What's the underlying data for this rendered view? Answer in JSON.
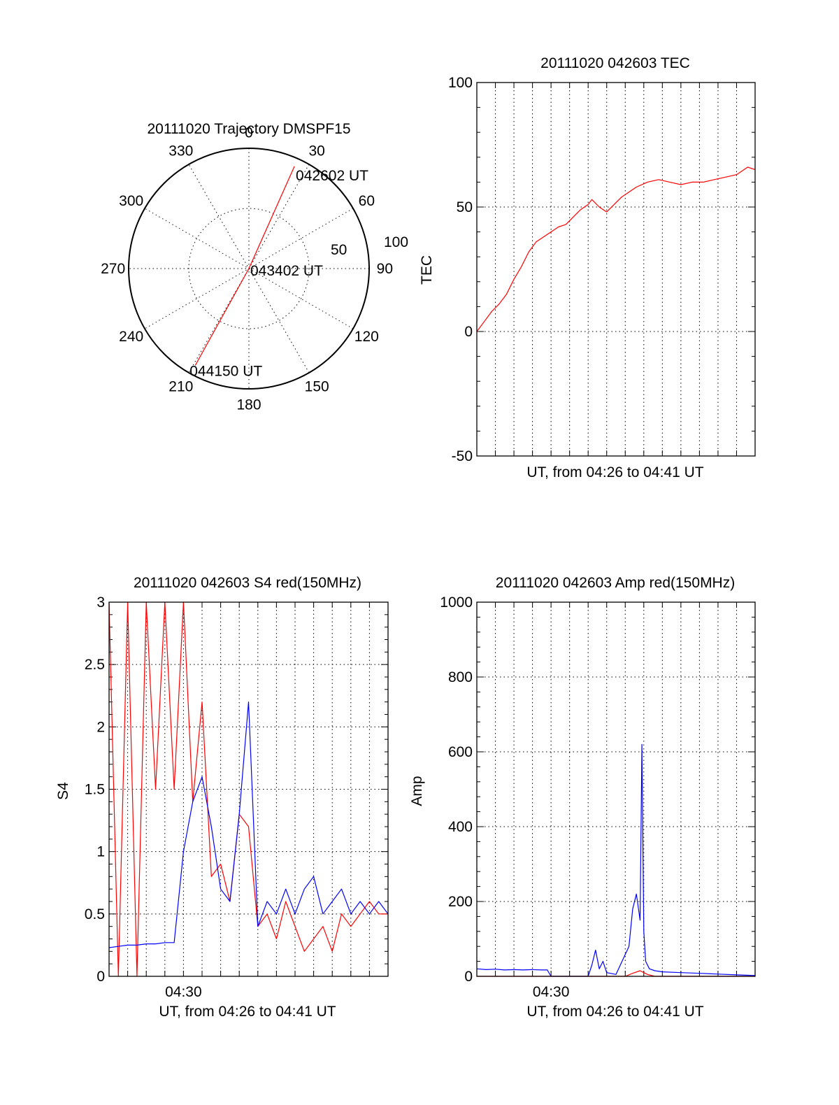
{
  "colors": {
    "red": "#ff0000",
    "blue": "#0000ff",
    "axis": "#000000"
  },
  "chart_data": [
    {
      "id": "trajectory",
      "type": "polar",
      "title": "20111020 Trajectory DMSPF15",
      "azimuth_labels": [
        "0",
        "30",
        "60",
        "90",
        "120",
        "150",
        "180",
        "210",
        "240",
        "270",
        "300",
        "330"
      ],
      "radial_labels": [
        "50",
        "100"
      ],
      "rlim": [
        0,
        100
      ],
      "grid": true,
      "series": [
        {
          "color": "red",
          "points": [
            [
              24,
              93
            ],
            [
              0,
              0
            ],
            [
              209,
              92
            ]
          ]
        }
      ],
      "annotations": [
        {
          "text": "042602 UT",
          "at": [
            24,
            93
          ]
        },
        {
          "text": "043402 UT",
          "at": [
            0,
            0
          ]
        },
        {
          "text": "044150 UT",
          "at": [
            209,
            92
          ]
        }
      ]
    },
    {
      "id": "tec",
      "type": "line",
      "title": "20111020 042603 TEC",
      "xlabel": "UT, from 04:26 to 04:41 UT",
      "ylabel": "TEC",
      "xlim": [
        0,
        15
      ],
      "ylim": [
        -50,
        100
      ],
      "yticks": [
        "-50",
        "0",
        "50",
        "100"
      ],
      "xtick_labels": [],
      "grid": true,
      "series": [
        {
          "color": "red",
          "x": [
            0,
            0.4,
            0.8,
            1.2,
            1.6,
            2.0,
            2.4,
            2.8,
            3.2,
            3.6,
            4.0,
            4.4,
            4.8,
            5.2,
            5.6,
            6.0,
            6.2,
            6.6,
            7.0,
            7.4,
            7.8,
            8.2,
            8.6,
            9.2,
            9.8,
            10.4,
            11.0,
            11.6,
            12.2,
            12.8,
            13.4,
            14.0,
            14.6,
            15.0
          ],
          "y": [
            0,
            4,
            8,
            11,
            15,
            21,
            26,
            32,
            36,
            38,
            40,
            42,
            43,
            46,
            49,
            51,
            53,
            50,
            48,
            51,
            54,
            56,
            58,
            60,
            61,
            60,
            59,
            60,
            60,
            61,
            62,
            63,
            66,
            65
          ]
        }
      ]
    },
    {
      "id": "s4",
      "type": "line",
      "title": "20111020 042603 S4 red(150MHz)",
      "xlabel": "UT, from 04:26 to 04:41 UT",
      "ylabel": "S4",
      "xlim": [
        0,
        15
      ],
      "ylim": [
        0,
        3
      ],
      "yticks": [
        "0",
        "0.5",
        "1",
        "1.5",
        "2",
        "2.5",
        "3"
      ],
      "xtick_labels": [
        {
          "x": 4,
          "label": "04:30"
        }
      ],
      "grid": true,
      "series": [
        {
          "color": "red",
          "x": [
            0,
            0.5,
            1,
            1.5,
            2,
            2.5,
            3,
            3.5,
            4,
            4.5,
            5,
            5.5,
            6,
            6.5,
            7,
            7.5,
            8,
            8.5,
            9,
            9.5,
            10,
            10.5,
            11,
            11.5,
            12,
            12.5,
            13,
            13.5,
            14,
            14.5,
            15
          ],
          "y": [
            3,
            0,
            3,
            0,
            3,
            1.5,
            3,
            1.5,
            3,
            1.4,
            2.2,
            0.8,
            0.9,
            0.6,
            1.3,
            1.2,
            0.4,
            0.5,
            0.3,
            0.6,
            0.4,
            0.2,
            0.3,
            0.4,
            0.2,
            0.5,
            0.4,
            0.5,
            0.6,
            0.5,
            0.5
          ]
        },
        {
          "color": "blue",
          "x": [
            0,
            0.5,
            1,
            1.5,
            2,
            2.5,
            3,
            3.5,
            4,
            4.5,
            5,
            5.5,
            6,
            6.5,
            7,
            7.5,
            8,
            8.5,
            9,
            9.5,
            10,
            10.5,
            11,
            11.5,
            12,
            12.5,
            13,
            13.5,
            14,
            14.5,
            15
          ],
          "y": [
            0.23,
            0.24,
            0.25,
            0.25,
            0.26,
            0.26,
            0.27,
            0.27,
            1.0,
            1.4,
            1.6,
            1.2,
            0.7,
            0.6,
            1.3,
            2.2,
            0.4,
            0.6,
            0.5,
            0.7,
            0.5,
            0.7,
            0.8,
            0.5,
            0.6,
            0.7,
            0.5,
            0.6,
            0.5,
            0.6,
            0.5
          ]
        }
      ]
    },
    {
      "id": "amp",
      "type": "line",
      "title": "20111020 042603 Amp red(150MHz)",
      "xlabel": "UT, from 04:26 to 04:41 UT",
      "ylabel": "Amp",
      "xlim": [
        0,
        15
      ],
      "ylim": [
        0,
        1000
      ],
      "yticks": [
        "0",
        "200",
        "400",
        "600",
        "800",
        "1000"
      ],
      "xtick_labels": [
        {
          "x": 4,
          "label": "04:30"
        }
      ],
      "grid": true,
      "series": [
        {
          "color": "blue",
          "x": [
            0,
            0.5,
            1,
            1.5,
            2,
            2.5,
            3,
            3.5,
            3.8,
            4.0,
            5,
            6,
            6.2,
            6.4,
            6.6,
            6.8,
            7.0,
            7.5,
            8.2,
            8.4,
            8.6,
            8.8,
            8.9,
            9.0,
            9.1,
            9.3,
            9.6,
            10,
            11,
            12,
            13,
            14,
            15
          ],
          "y": [
            20,
            18,
            19,
            17,
            18,
            17,
            18,
            17,
            17,
            0,
            0,
            0,
            30,
            70,
            20,
            40,
            10,
            5,
            80,
            180,
            220,
            150,
            620,
            120,
            40,
            20,
            15,
            12,
            10,
            8,
            6,
            4,
            2
          ]
        },
        {
          "color": "red",
          "x": [
            0,
            8,
            8.4,
            8.8,
            9.0,
            9.2,
            9.6,
            15
          ],
          "y": [
            0,
            0,
            8,
            15,
            10,
            5,
            0,
            0
          ]
        }
      ]
    }
  ]
}
